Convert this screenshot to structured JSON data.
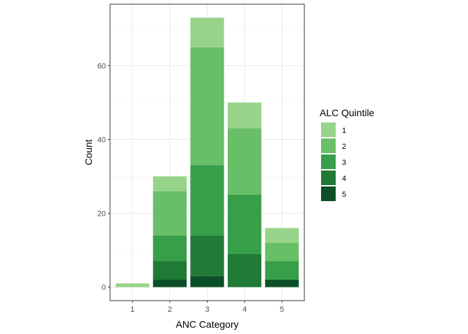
{
  "chart_data": {
    "type": "bar",
    "stacked": true,
    "categories": [
      "1",
      "2",
      "3",
      "4",
      "5"
    ],
    "series": [
      {
        "name": "5",
        "values": [
          0,
          2,
          3,
          0,
          2
        ],
        "color": "#0b4f26"
      },
      {
        "name": "4",
        "values": [
          0,
          5,
          11,
          9,
          0
        ],
        "color": "#1f7a35"
      },
      {
        "name": "3",
        "values": [
          0,
          7,
          19,
          16,
          5
        ],
        "color": "#379e4a"
      },
      {
        "name": "2",
        "values": [
          0,
          12,
          32,
          18,
          5
        ],
        "color": "#69be68"
      },
      {
        "name": "1",
        "values": [
          1,
          4,
          8,
          7,
          4
        ],
        "color": "#97d48a"
      }
    ],
    "xlabel": "ANC Category",
    "ylabel": "Count",
    "ylim": [
      -3.65,
      76.65
    ],
    "yticks": [
      0,
      20,
      40,
      60
    ],
    "grid": true,
    "legend": {
      "title": "ALC Quintile",
      "position": "right",
      "items": [
        "1",
        "2",
        "3",
        "4",
        "5"
      ]
    }
  }
}
